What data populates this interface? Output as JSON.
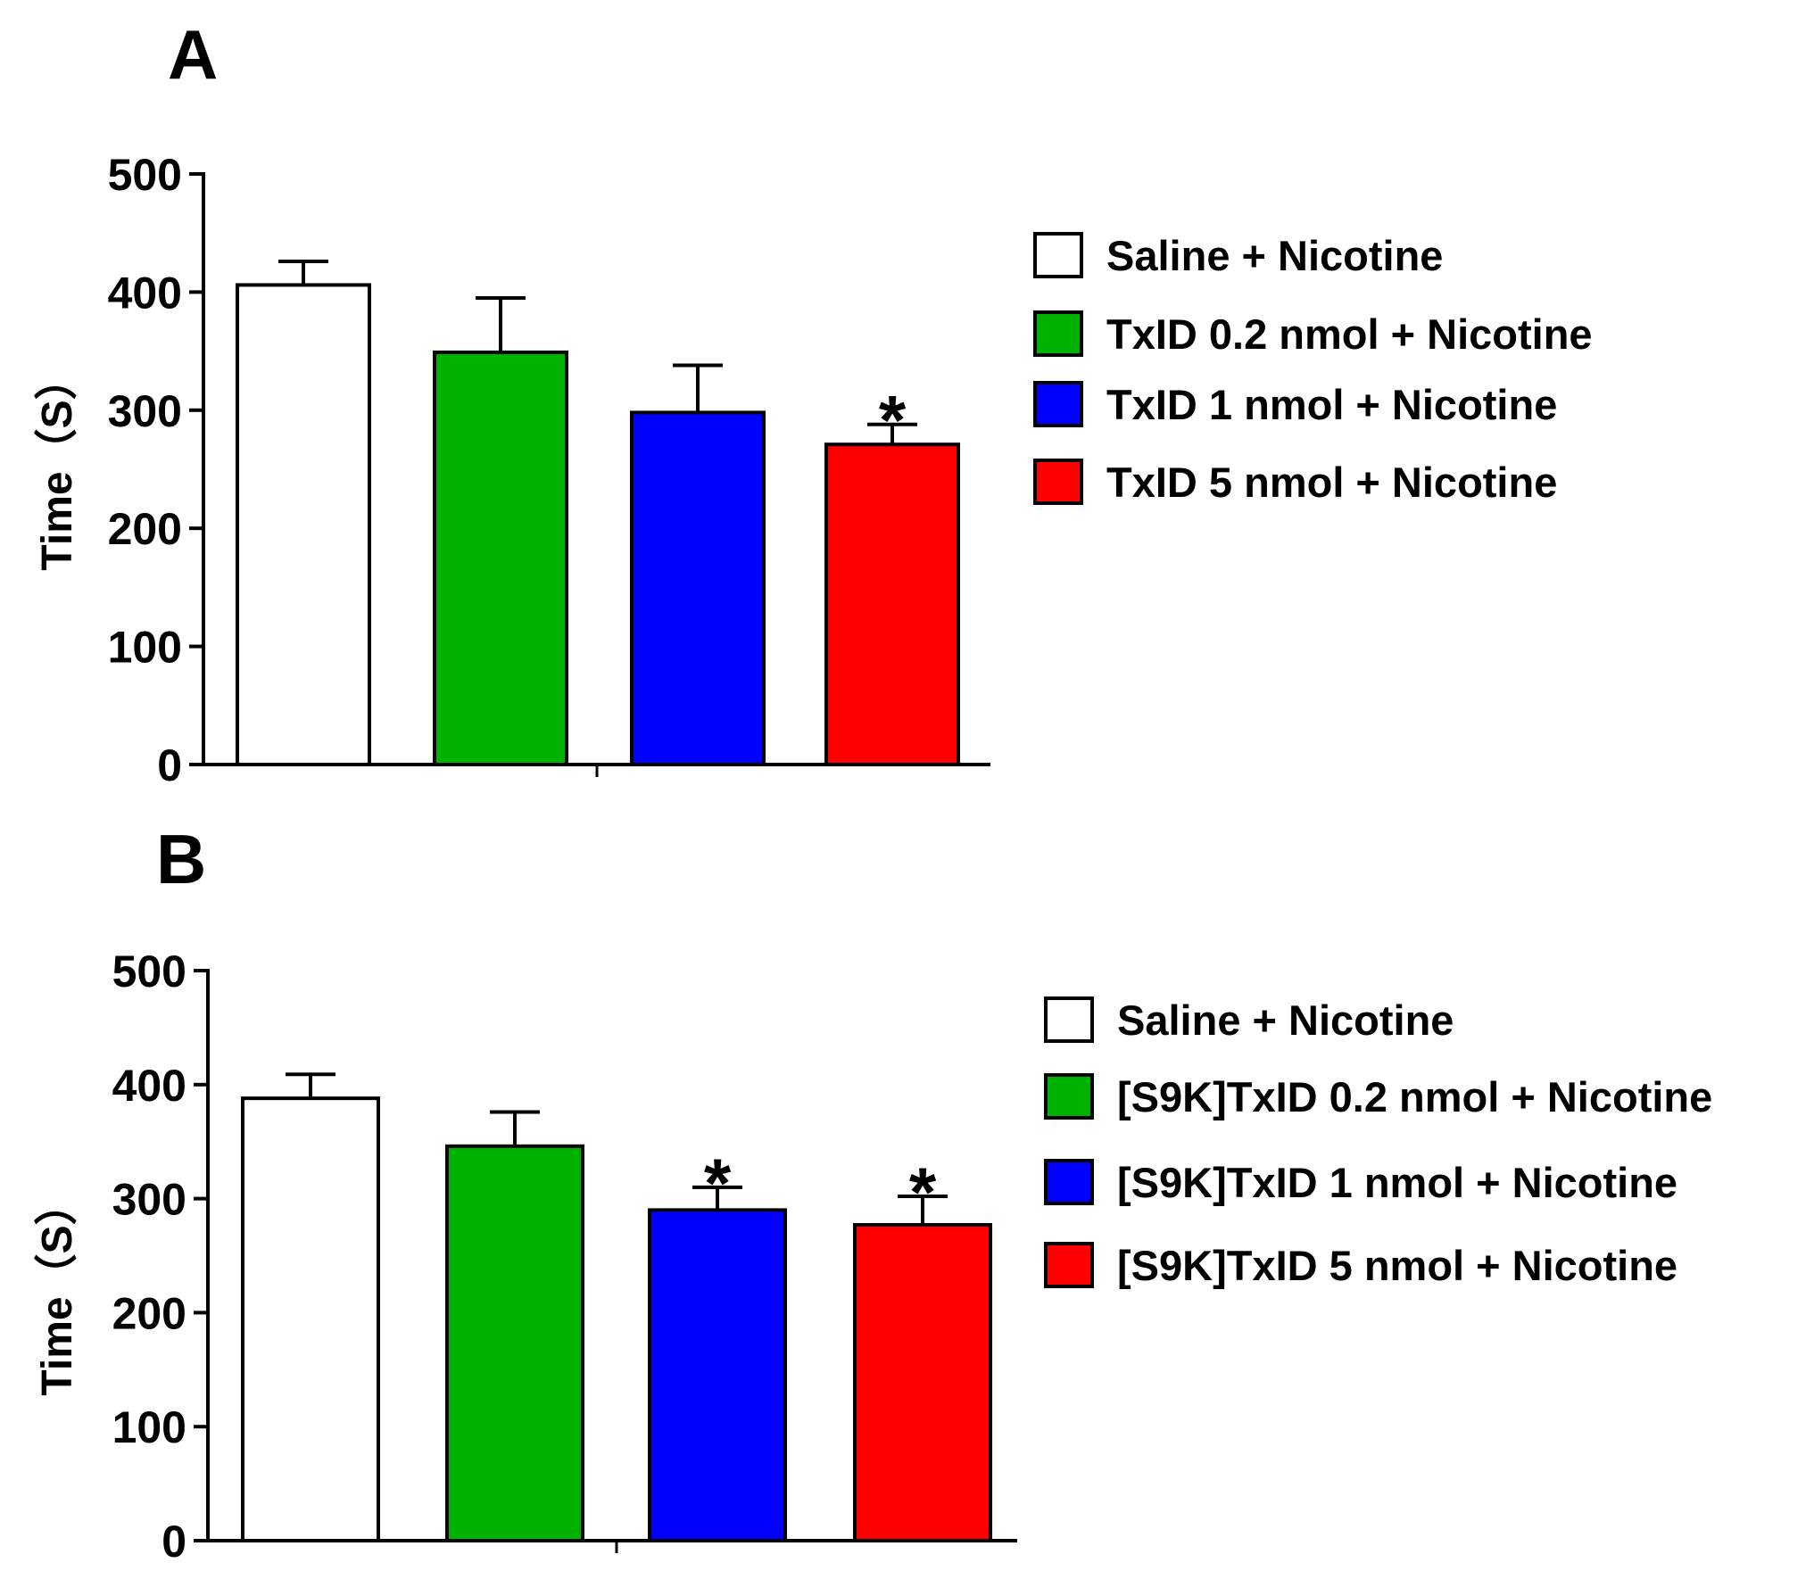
{
  "chart_data": [
    {
      "panel": "A",
      "type": "bar",
      "ylabel": "Time（S）",
      "ylim": [
        0,
        500
      ],
      "yticks": [
        0,
        100,
        200,
        300,
        400,
        500
      ],
      "categories": [
        "Saline + Nicotine",
        "TxID 0.2 nmol + Nicotine",
        "TxID 1 nmol + Nicotine",
        "TxID 5 nmol + Nicotine"
      ],
      "values": [
        406,
        349,
        298,
        271
      ],
      "errors": [
        20,
        46,
        40,
        17
      ],
      "significance": [
        "",
        "",
        "",
        "*"
      ],
      "colors": [
        "#ffffff",
        "#00b200",
        "#0000ff",
        "#ff0000"
      ],
      "legend": [
        "Saline + Nicotine",
        "TxID 0.2 nmol + Nicotine",
        "TxID 1 nmol + Nicotine",
        "TxID 5 nmol + Nicotine"
      ],
      "legend_position": "right"
    },
    {
      "panel": "B",
      "type": "bar",
      "ylabel": "Time（S）",
      "ylim": [
        0,
        500
      ],
      "yticks": [
        0,
        100,
        200,
        300,
        400,
        500
      ],
      "categories": [
        "Saline  + Nicotine",
        "[S9K]TxID 0.2 nmol  + Nicotine",
        "[S9K]TxID 1 nmol  + Nicotine",
        "[S9K]TxID 5 nmol  + Nicotine"
      ],
      "values": [
        388,
        346,
        290,
        277
      ],
      "errors": [
        21,
        30,
        20,
        25
      ],
      "significance": [
        "",
        "",
        "*",
        "*"
      ],
      "colors": [
        "#ffffff",
        "#00b200",
        "#0000ff",
        "#ff0000"
      ],
      "legend": [
        "Saline  + Nicotine",
        "[S9K]TxID 0.2 nmol  + Nicotine",
        "[S9K]TxID 1 nmol  + Nicotine",
        "[S9K]TxID 5 nmol  + Nicotine"
      ],
      "legend_position": "right"
    }
  ]
}
